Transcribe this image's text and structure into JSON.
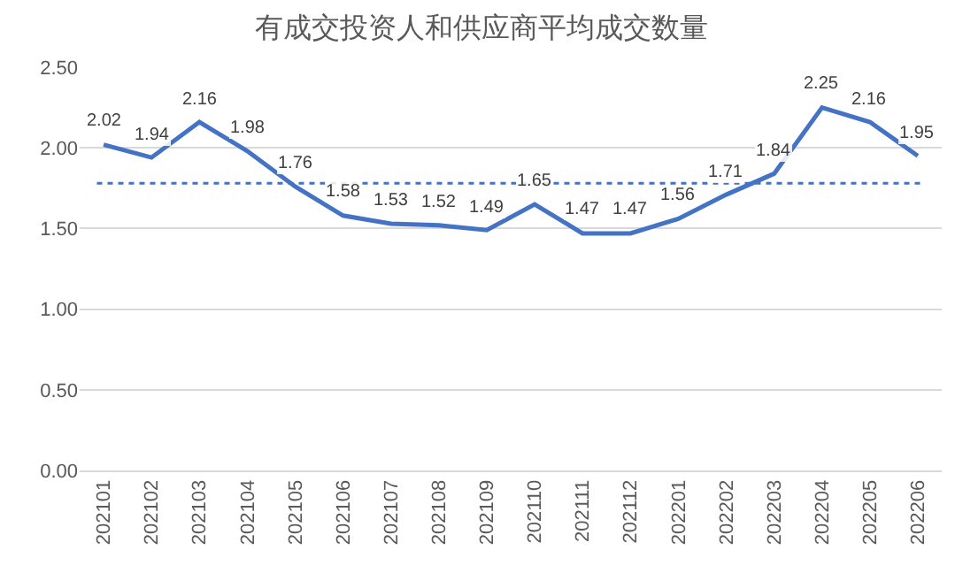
{
  "chart_data": {
    "type": "line",
    "title": "有成交投资人和供应商平均成交数量",
    "categories": [
      "202101",
      "202102",
      "202103",
      "202104",
      "202105",
      "202106",
      "202107",
      "202108",
      "202109",
      "202110",
      "202111",
      "202112",
      "202201",
      "202202",
      "202203",
      "202204",
      "202205",
      "202206"
    ],
    "series": [
      {
        "color": "#4472c4",
        "values": [
          2.02,
          1.94,
          2.16,
          1.98,
          1.76,
          1.58,
          1.53,
          1.52,
          1.49,
          1.65,
          1.47,
          1.47,
          1.56,
          1.71,
          1.84,
          2.25,
          2.16,
          1.95
        ]
      }
    ],
    "ylim": [
      0,
      2.5
    ],
    "yticks": [
      {
        "value": 0,
        "label": "0.00"
      },
      {
        "value": 0.5,
        "label": "0.50"
      },
      {
        "value": 1,
        "label": "1.00"
      },
      {
        "value": 1.5,
        "label": "1.50"
      },
      {
        "value": 2,
        "label": "2.00"
      },
      {
        "value": 2.5,
        "label": "2.50"
      }
    ],
    "ref_lines": [
      {
        "axis": "y",
        "value": 1.78,
        "color": "#4472c4",
        "line_style": "dotted"
      }
    ],
    "grid": "y",
    "data_labels": true,
    "marker": "none",
    "line_style": "solid",
    "legend": false
  }
}
